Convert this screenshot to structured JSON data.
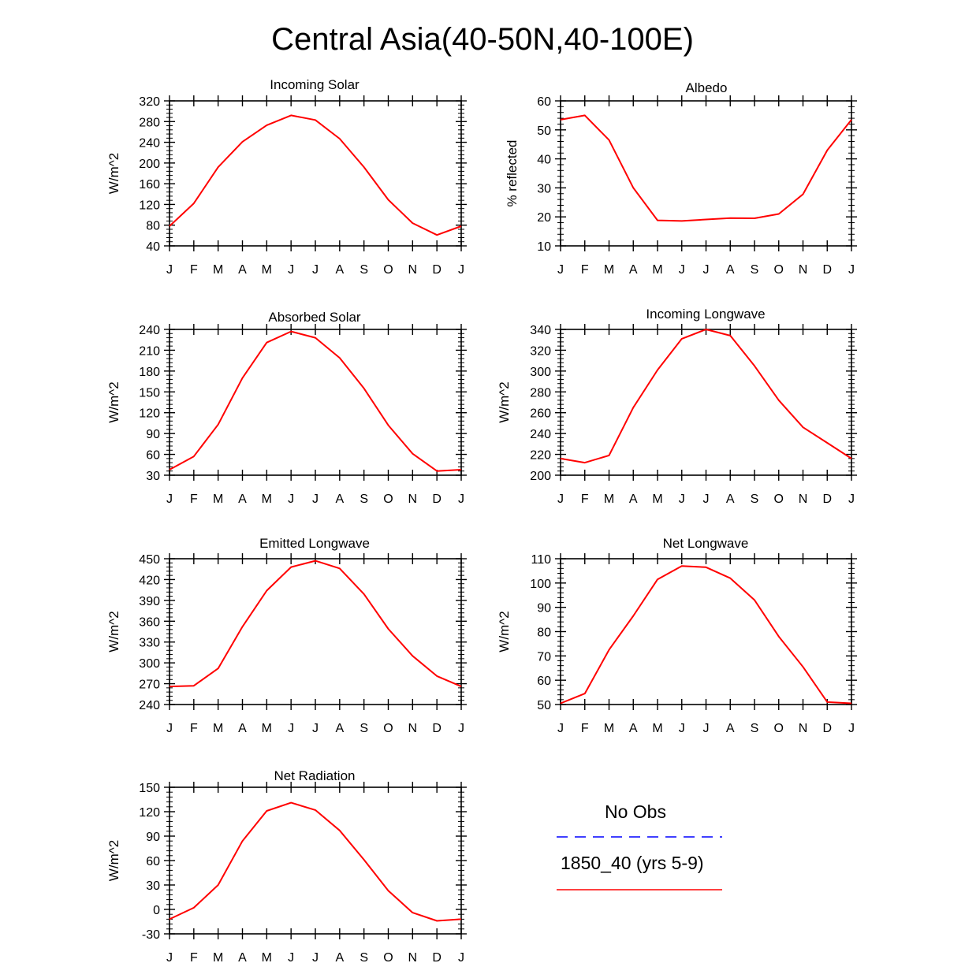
{
  "title": "Central Asia(40-50N,40-100E)",
  "months": [
    "J",
    "F",
    "M",
    "A",
    "M",
    "J",
    "J",
    "A",
    "S",
    "O",
    "N",
    "D",
    "J"
  ],
  "colors": {
    "model_line": "#ff0000",
    "obs_line": "#0000ff",
    "axis": "#000000"
  },
  "chart_data": [
    {
      "type": "line",
      "title": "Incoming Solar",
      "ylabel": "W/m^2",
      "ylim": [
        40,
        320
      ],
      "yticks": [
        40,
        80,
        120,
        160,
        200,
        240,
        280,
        320
      ],
      "ytick_labels": [
        "40",
        "80",
        "120",
        "160",
        "200",
        "240",
        "280",
        "320"
      ],
      "series": [
        {
          "name": "1850_40 (yrs 5-9)",
          "values": [
            78,
            122,
            192,
            241,
            273,
            292,
            283,
            247,
            192,
            129,
            84,
            61,
            78
          ]
        }
      ]
    },
    {
      "type": "line",
      "title": "Albedo",
      "ylabel": "% reflected",
      "ylim": [
        10,
        60
      ],
      "yticks": [
        10,
        20,
        30,
        40,
        50,
        60
      ],
      "ytick_labels": [
        "10",
        "20",
        "30",
        "40",
        "50",
        "60"
      ],
      "series": [
        {
          "name": "1850_40 (yrs 5-9)",
          "values": [
            53.5,
            55,
            46.5,
            30,
            18.8,
            18.6,
            19.1,
            19.6,
            19.5,
            21,
            27.8,
            43,
            53.5
          ]
        }
      ]
    },
    {
      "type": "line",
      "title": "Absorbed Solar",
      "ylabel": "W/m^2",
      "ylim": [
        30,
        240
      ],
      "yticks": [
        30,
        60,
        90,
        120,
        150,
        180,
        210,
        240
      ],
      "ytick_labels": [
        "30",
        "60",
        "90",
        "120",
        "150",
        "180",
        "210",
        "240"
      ],
      "series": [
        {
          "name": "1850_40 (yrs 5-9)",
          "values": [
            38,
            57,
            103,
            170,
            221,
            237,
            228,
            199,
            155,
            102,
            61,
            36,
            38
          ]
        }
      ]
    },
    {
      "type": "line",
      "title": "Incoming Longwave",
      "ylabel": "W/m^2",
      "ylim": [
        200,
        340
      ],
      "yticks": [
        200,
        220,
        240,
        260,
        280,
        300,
        320,
        340
      ],
      "ytick_labels": [
        "200",
        "220",
        "240",
        "260",
        "280",
        "300",
        "320",
        "340"
      ],
      "series": [
        {
          "name": "1850_40 (yrs 5-9)",
          "values": [
            216,
            212,
            219,
            265,
            301,
            331,
            340,
            334,
            305,
            272,
            246,
            231,
            216
          ]
        }
      ]
    },
    {
      "type": "line",
      "title": "Emitted Longwave",
      "ylabel": "W/m^2",
      "ylim": [
        240,
        450
      ],
      "yticks": [
        240,
        270,
        300,
        330,
        360,
        390,
        420,
        450
      ],
      "ytick_labels": [
        "240",
        "270",
        "300",
        "330",
        "360",
        "390",
        "420",
        "450"
      ],
      "series": [
        {
          "name": "1850_40 (yrs 5-9)",
          "values": [
            266,
            267,
            292,
            352,
            404,
            438,
            447,
            436,
            399,
            349,
            310,
            281,
            266
          ]
        }
      ]
    },
    {
      "type": "line",
      "title": "Net Longwave",
      "ylabel": "W/m^2",
      "ylim": [
        50,
        110
      ],
      "yticks": [
        50,
        60,
        70,
        80,
        90,
        100,
        110
      ],
      "ytick_labels": [
        "50",
        "60",
        "70",
        "80",
        "90",
        "100",
        "110"
      ],
      "series": [
        {
          "name": "1850_40 (yrs 5-9)",
          "values": [
            50.5,
            54.5,
            72.5,
            86.5,
            101.5,
            107,
            106.5,
            102,
            93,
            78,
            65.5,
            51,
            50.5
          ]
        }
      ]
    },
    {
      "type": "line",
      "title": "Net Radiation",
      "ylabel": "W/m^2",
      "ylim": [
        -30,
        150
      ],
      "yticks": [
        -30,
        0,
        30,
        60,
        90,
        120,
        150
      ],
      "ytick_labels": [
        "-30",
        "0",
        "30",
        "60",
        "90",
        "120",
        "150"
      ],
      "series": [
        {
          "name": "1850_40 (yrs 5-9)",
          "values": [
            -12,
            2,
            30,
            84,
            121,
            131,
            122,
            97,
            61,
            23,
            -4,
            -14,
            -12
          ]
        }
      ]
    }
  ],
  "legend": {
    "obs_label": "No Obs",
    "model_label": "1850_40 (yrs 5-9)"
  }
}
